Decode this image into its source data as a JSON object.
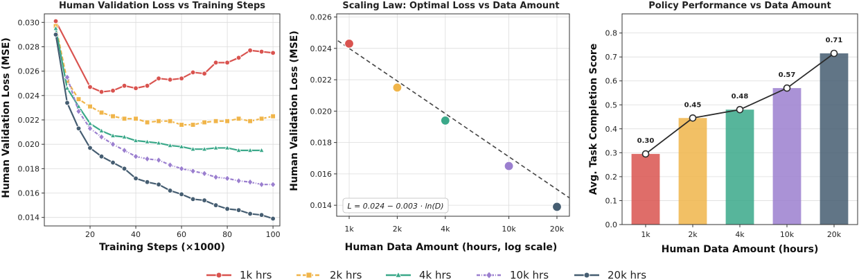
{
  "chart_data": [
    {
      "type": "line",
      "title": "Human Validation Loss vs Training Steps",
      "xlabel": "Training Steps (×1000)",
      "ylabel": "Human Validation Loss (MSE)",
      "xlim": [
        0,
        103
      ],
      "ylim": [
        0.0133,
        0.0307
      ],
      "xticks": [
        20,
        40,
        60,
        80,
        100
      ],
      "yticks": [
        0.014,
        0.016,
        0.018,
        0.02,
        0.022,
        0.024,
        0.026,
        0.028,
        0.03
      ],
      "grid": true,
      "series": [
        {
          "name": "1k hrs",
          "color": "#d9534f",
          "marker": "circle",
          "x": [
            5,
            20,
            25,
            30,
            35,
            40,
            45,
            50,
            55,
            60,
            65,
            70,
            75,
            80,
            85,
            90,
            95,
            100
          ],
          "y": [
            0.0301,
            0.0247,
            0.0243,
            0.0244,
            0.0248,
            0.0246,
            0.0248,
            0.0254,
            0.0253,
            0.0254,
            0.0259,
            0.0258,
            0.0267,
            0.0267,
            0.0271,
            0.0277,
            0.0276,
            0.0275
          ]
        },
        {
          "name": "2k hrs",
          "color": "#f0b54a",
          "marker": "square",
          "x": [
            5,
            10,
            15,
            20,
            25,
            30,
            35,
            40,
            45,
            50,
            55,
            60,
            65,
            70,
            75,
            80,
            85,
            90,
            95,
            100
          ],
          "y": [
            0.0297,
            0.0252,
            0.0237,
            0.0231,
            0.0226,
            0.0223,
            0.0221,
            0.0221,
            0.0218,
            0.0219,
            0.0219,
            0.0216,
            0.0216,
            0.0218,
            0.0219,
            0.0219,
            0.0221,
            0.0219,
            0.0221,
            0.0223
          ]
        },
        {
          "name": "4k hrs",
          "color": "#3aa889",
          "marker": "triangle",
          "x": [
            5,
            10,
            15,
            20,
            25,
            30,
            35,
            40,
            45,
            50,
            55,
            60,
            65,
            70,
            75,
            80,
            85,
            90,
            95
          ],
          "y": [
            0.0295,
            0.0246,
            0.0231,
            0.0217,
            0.0211,
            0.0207,
            0.0206,
            0.0203,
            0.0202,
            0.0201,
            0.0199,
            0.0198,
            0.0196,
            0.0196,
            0.0197,
            0.0197,
            0.0195,
            0.0195,
            0.0195
          ]
        },
        {
          "name": "10k hrs",
          "color": "#9b7fcf",
          "marker": "diamond",
          "x": [
            10,
            15,
            20,
            25,
            30,
            35,
            40,
            45,
            50,
            55,
            60,
            65,
            70,
            75,
            80,
            85,
            90,
            95,
            100
          ],
          "y": [
            0.0255,
            0.0227,
            0.0213,
            0.0206,
            0.02,
            0.0195,
            0.019,
            0.0188,
            0.0187,
            0.0183,
            0.018,
            0.0178,
            0.0176,
            0.0173,
            0.0172,
            0.017,
            0.0169,
            0.0167,
            0.0167
          ]
        },
        {
          "name": "20k hrs",
          "color": "#455d71",
          "marker": "circle",
          "x": [
            5,
            10,
            15,
            20,
            25,
            30,
            35,
            40,
            45,
            50,
            55,
            60,
            65,
            70,
            75,
            80,
            85,
            90,
            95,
            100
          ],
          "y": [
            0.029,
            0.0234,
            0.0213,
            0.0197,
            0.019,
            0.0185,
            0.018,
            0.0172,
            0.0169,
            0.0167,
            0.0162,
            0.0159,
            0.0155,
            0.0154,
            0.015,
            0.0147,
            0.0146,
            0.0143,
            0.0142,
            0.0139
          ]
        }
      ]
    },
    {
      "type": "scatter",
      "title": "Scaling Law: Optimal Loss vs Data Amount",
      "xlabel": "Human Data Amount (hours, log scale)",
      "ylabel": "Human Validation Loss (MSE)",
      "xscale": "log",
      "xlim": [
        1,
        20
      ],
      "ylim": [
        0.0133,
        0.0262
      ],
      "xticks": [
        "1k",
        "2k",
        "4k",
        "10k",
        "20k"
      ],
      "yticks": [
        0.014,
        0.016,
        0.018,
        0.02,
        0.022,
        0.024,
        0.026
      ],
      "grid": true,
      "points": [
        {
          "x": "1k",
          "y": 0.0243,
          "color": "#d9534f"
        },
        {
          "x": "2k",
          "y": 0.0215,
          "color": "#f0b54a"
        },
        {
          "x": "4k",
          "y": 0.0194,
          "color": "#3aa889"
        },
        {
          "x": "10k",
          "y": 0.0165,
          "color": "#9b7fcf"
        },
        {
          "x": "20k",
          "y": 0.0139,
          "color": "#455d71"
        }
      ],
      "fit_line": {
        "a": 0.024,
        "b": 0.003,
        "style": "dashed",
        "color": "#444444"
      },
      "annotation": "L = 0.024 − 0.003 · ln(D)"
    },
    {
      "type": "bar",
      "title": "Policy Performance vs Data Amount",
      "xlabel": "Human Data Amount (hours)",
      "ylabel": "Avg. Task Completion Score",
      "categories": [
        "1k",
        "2k",
        "4k",
        "10k",
        "20k"
      ],
      "values": [
        0.295,
        0.445,
        0.48,
        0.57,
        0.715
      ],
      "data_labels": [
        "0.30",
        "0.45",
        "0.48",
        "0.57",
        "0.71"
      ],
      "colors": [
        "#d9534f",
        "#f0b54a",
        "#3aa889",
        "#9b7fcf",
        "#455d71"
      ],
      "ylim": [
        0,
        0.88
      ],
      "yticks": [
        0.0,
        0.1,
        0.2,
        0.3,
        0.4,
        0.5,
        0.6,
        0.7,
        0.8
      ],
      "overlay_line": true,
      "grid": true
    }
  ],
  "legend": {
    "placement": "bottom-center",
    "items": [
      {
        "label": "1k hrs",
        "color": "#d9534f",
        "marker": "circle"
      },
      {
        "label": "2k hrs",
        "color": "#f0b54a",
        "marker": "square"
      },
      {
        "label": "4k hrs",
        "color": "#3aa889",
        "marker": "triangle"
      },
      {
        "label": "10k hrs",
        "color": "#9b7fcf",
        "marker": "diamond"
      },
      {
        "label": "20k hrs",
        "color": "#455d71",
        "marker": "circle"
      }
    ]
  }
}
